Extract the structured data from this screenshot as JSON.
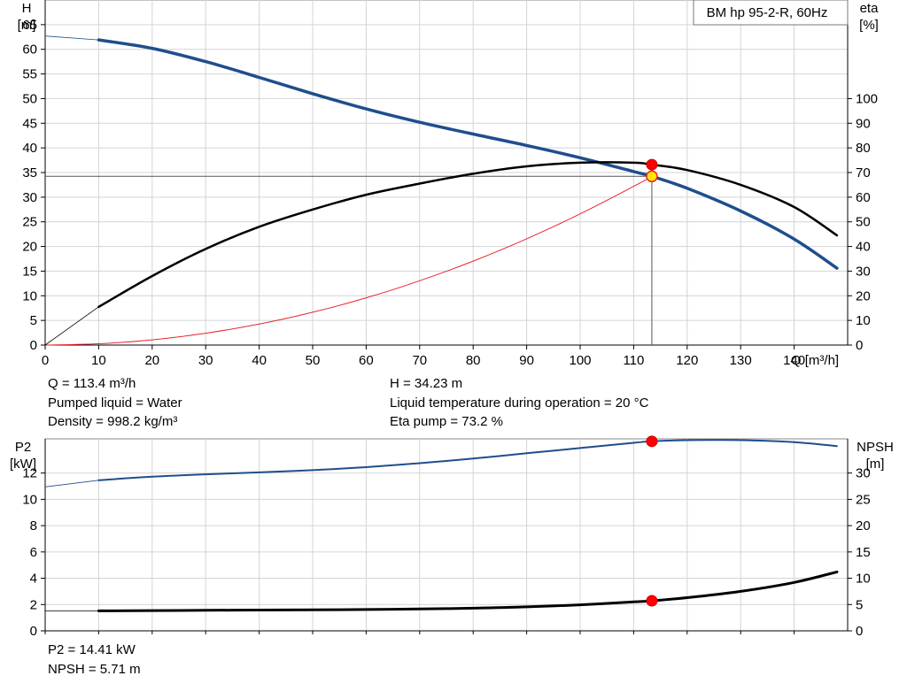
{
  "chart_data": [
    {
      "type": "line",
      "title": "BM hp 95-2-R, 60Hz",
      "xlabel": "Q [m³/h]",
      "ylabel_left": [
        "H",
        "[m]"
      ],
      "ylabel_right": [
        "eta",
        "[%]"
      ],
      "xlim": [
        0,
        150
      ],
      "ylim_left": [
        0,
        70
      ],
      "ylim_right": [
        0,
        140
      ],
      "x_ticks": [
        0,
        10,
        20,
        30,
        40,
        50,
        60,
        70,
        80,
        90,
        100,
        110,
        120,
        130,
        140
      ],
      "y_ticks_left": [
        0,
        5,
        10,
        15,
        20,
        25,
        30,
        35,
        40,
        45,
        50,
        55,
        60,
        65
      ],
      "y_ticks_right": [
        0,
        10,
        20,
        30,
        40,
        50,
        60,
        70,
        80,
        90,
        100
      ],
      "grid": true,
      "series": [
        {
          "axis": "left",
          "color": "#1f4e8c",
          "x": [
            10,
            20,
            30,
            40,
            50,
            60,
            70,
            80,
            90,
            100,
            110,
            113.4,
            120,
            130,
            140,
            148
          ],
          "values": [
            61.9,
            60.2,
            57.5,
            54.3,
            51,
            47.9,
            45.2,
            42.8,
            40.5,
            38,
            35.2,
            34.23,
            31.8,
            27.2,
            21.5,
            15.6
          ]
        },
        {
          "axis": "right",
          "color": "#000000",
          "x": [
            10,
            20,
            30,
            40,
            50,
            60,
            70,
            80,
            90,
            100,
            110,
            113.4,
            120,
            130,
            140,
            148
          ],
          "values": [
            15.5,
            28,
            39,
            48,
            55,
            61,
            65.5,
            69.5,
            72.5,
            74,
            74,
            73.2,
            71,
            65,
            56,
            44.5
          ]
        },
        {
          "axis": "left",
          "color": "#e8252b",
          "x": [
            0,
            10,
            20,
            30,
            40,
            50,
            60,
            70,
            80,
            90,
            100,
            110,
            113.4
          ],
          "values": [
            0,
            0.27,
            1.06,
            2.4,
            4.26,
            6.65,
            9.58,
            13.04,
            17.03,
            21.55,
            26.61,
            32.2,
            34.23
          ]
        },
        {
          "axis": "left",
          "color": "#1f4e8c",
          "thin": true,
          "x": [
            0,
            10
          ],
          "values": [
            62.7,
            61.9
          ]
        },
        {
          "axis": "right",
          "color": "#000000",
          "thin": true,
          "x": [
            0,
            10
          ],
          "values": [
            0,
            15.5
          ]
        }
      ],
      "duty_point": {
        "x": 113.4,
        "y": 34.23,
        "eta": 73.2
      }
    },
    {
      "type": "line",
      "ylabel_left": [
        "P2",
        "[kW]"
      ],
      "ylabel_right": [
        "NPSH",
        "[m]"
      ],
      "xlim": [
        0,
        150
      ],
      "ylim_left": [
        0,
        14.6
      ],
      "ylim_right": [
        0,
        36.5
      ],
      "y_ticks_left": [
        0,
        2,
        4,
        6,
        8,
        10,
        12
      ],
      "y_ticks_right": [
        0,
        5,
        10,
        15,
        20,
        25,
        30
      ],
      "grid": true,
      "series": [
        {
          "axis": "left",
          "color": "#1f4e8c",
          "x": [
            0,
            10,
            20,
            30,
            40,
            50,
            60,
            70,
            80,
            90,
            100,
            110,
            113.4,
            120,
            130,
            140,
            148
          ],
          "values": [
            10.95,
            11.45,
            11.72,
            11.9,
            12.05,
            12.22,
            12.45,
            12.75,
            13.1,
            13.5,
            13.9,
            14.3,
            14.41,
            14.5,
            14.5,
            14.35,
            14.05
          ]
        },
        {
          "axis": "right",
          "color": "#000000",
          "x": [
            0,
            10,
            20,
            30,
            40,
            50,
            60,
            70,
            80,
            90,
            100,
            110,
            113.4,
            120,
            130,
            140,
            148
          ],
          "values": [
            3.8,
            3.8,
            3.85,
            3.9,
            3.95,
            4.0,
            4.05,
            4.15,
            4.3,
            4.55,
            4.95,
            5.5,
            5.71,
            6.3,
            7.5,
            9.2,
            11.2
          ]
        }
      ],
      "duty_point": {
        "x": 113.4,
        "p2": 14.41,
        "npsh": 5.71
      }
    }
  ],
  "info": {
    "q": "Q = 113.4 m³/h",
    "liquid": "Pumped liquid = Water",
    "density": "Density = 998.2 kg/m³",
    "h": "H = 34.23 m",
    "temp": "Liquid temperature during operation = 20 °C",
    "eta": "Eta pump = 73.2 %",
    "p2": "P2 = 14.41 kW",
    "npsh": "NPSH = 5.71 m"
  }
}
